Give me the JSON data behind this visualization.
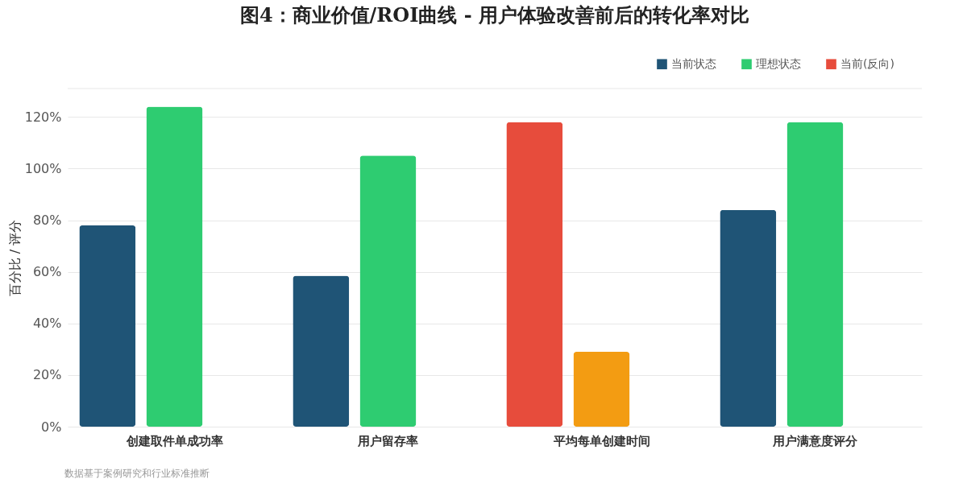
{
  "chart_data": {
    "type": "bar",
    "title": "图4：商业价值/ROI曲线 - 用户体验改善前后的转化率对比",
    "ylabel": "百分比 / 评分",
    "categories": [
      "创建取件单成功率",
      "用户留存率",
      "平均每单创建时间",
      "用户满意度评分"
    ],
    "series": [
      {
        "name": "当前状态",
        "color": "#1f5476",
        "colors": [
          "#1f5476",
          "#1f5476",
          "#e74c3c",
          "#1f5476"
        ],
        "values": [
          78,
          58.5,
          118,
          84
        ]
      },
      {
        "name": "理想状态",
        "color": "#2ecc71",
        "colors": [
          "#2ecc71",
          "#2ecc71",
          "#f39c12",
          "#2ecc71"
        ],
        "values": [
          124,
          105,
          29,
          118
        ]
      },
      {
        "name": "当前(反向)",
        "color": "#e74c3c",
        "values": [
          null,
          null,
          null,
          null
        ]
      }
    ],
    "ylim": [
      0,
      131
    ],
    "yticks": [
      {
        "value": 0,
        "label": "0%"
      },
      {
        "value": 20,
        "label": "20%"
      },
      {
        "value": 40,
        "label": "40%"
      },
      {
        "value": 60,
        "label": "60%"
      },
      {
        "value": 80,
        "label": "80%"
      },
      {
        "value": 100,
        "label": "100%"
      },
      {
        "value": 120,
        "label": "120%"
      }
    ],
    "grid": "y",
    "legend": "top right",
    "annotations": [
      "数据基于案例研究和行业标准推断"
    ]
  }
}
